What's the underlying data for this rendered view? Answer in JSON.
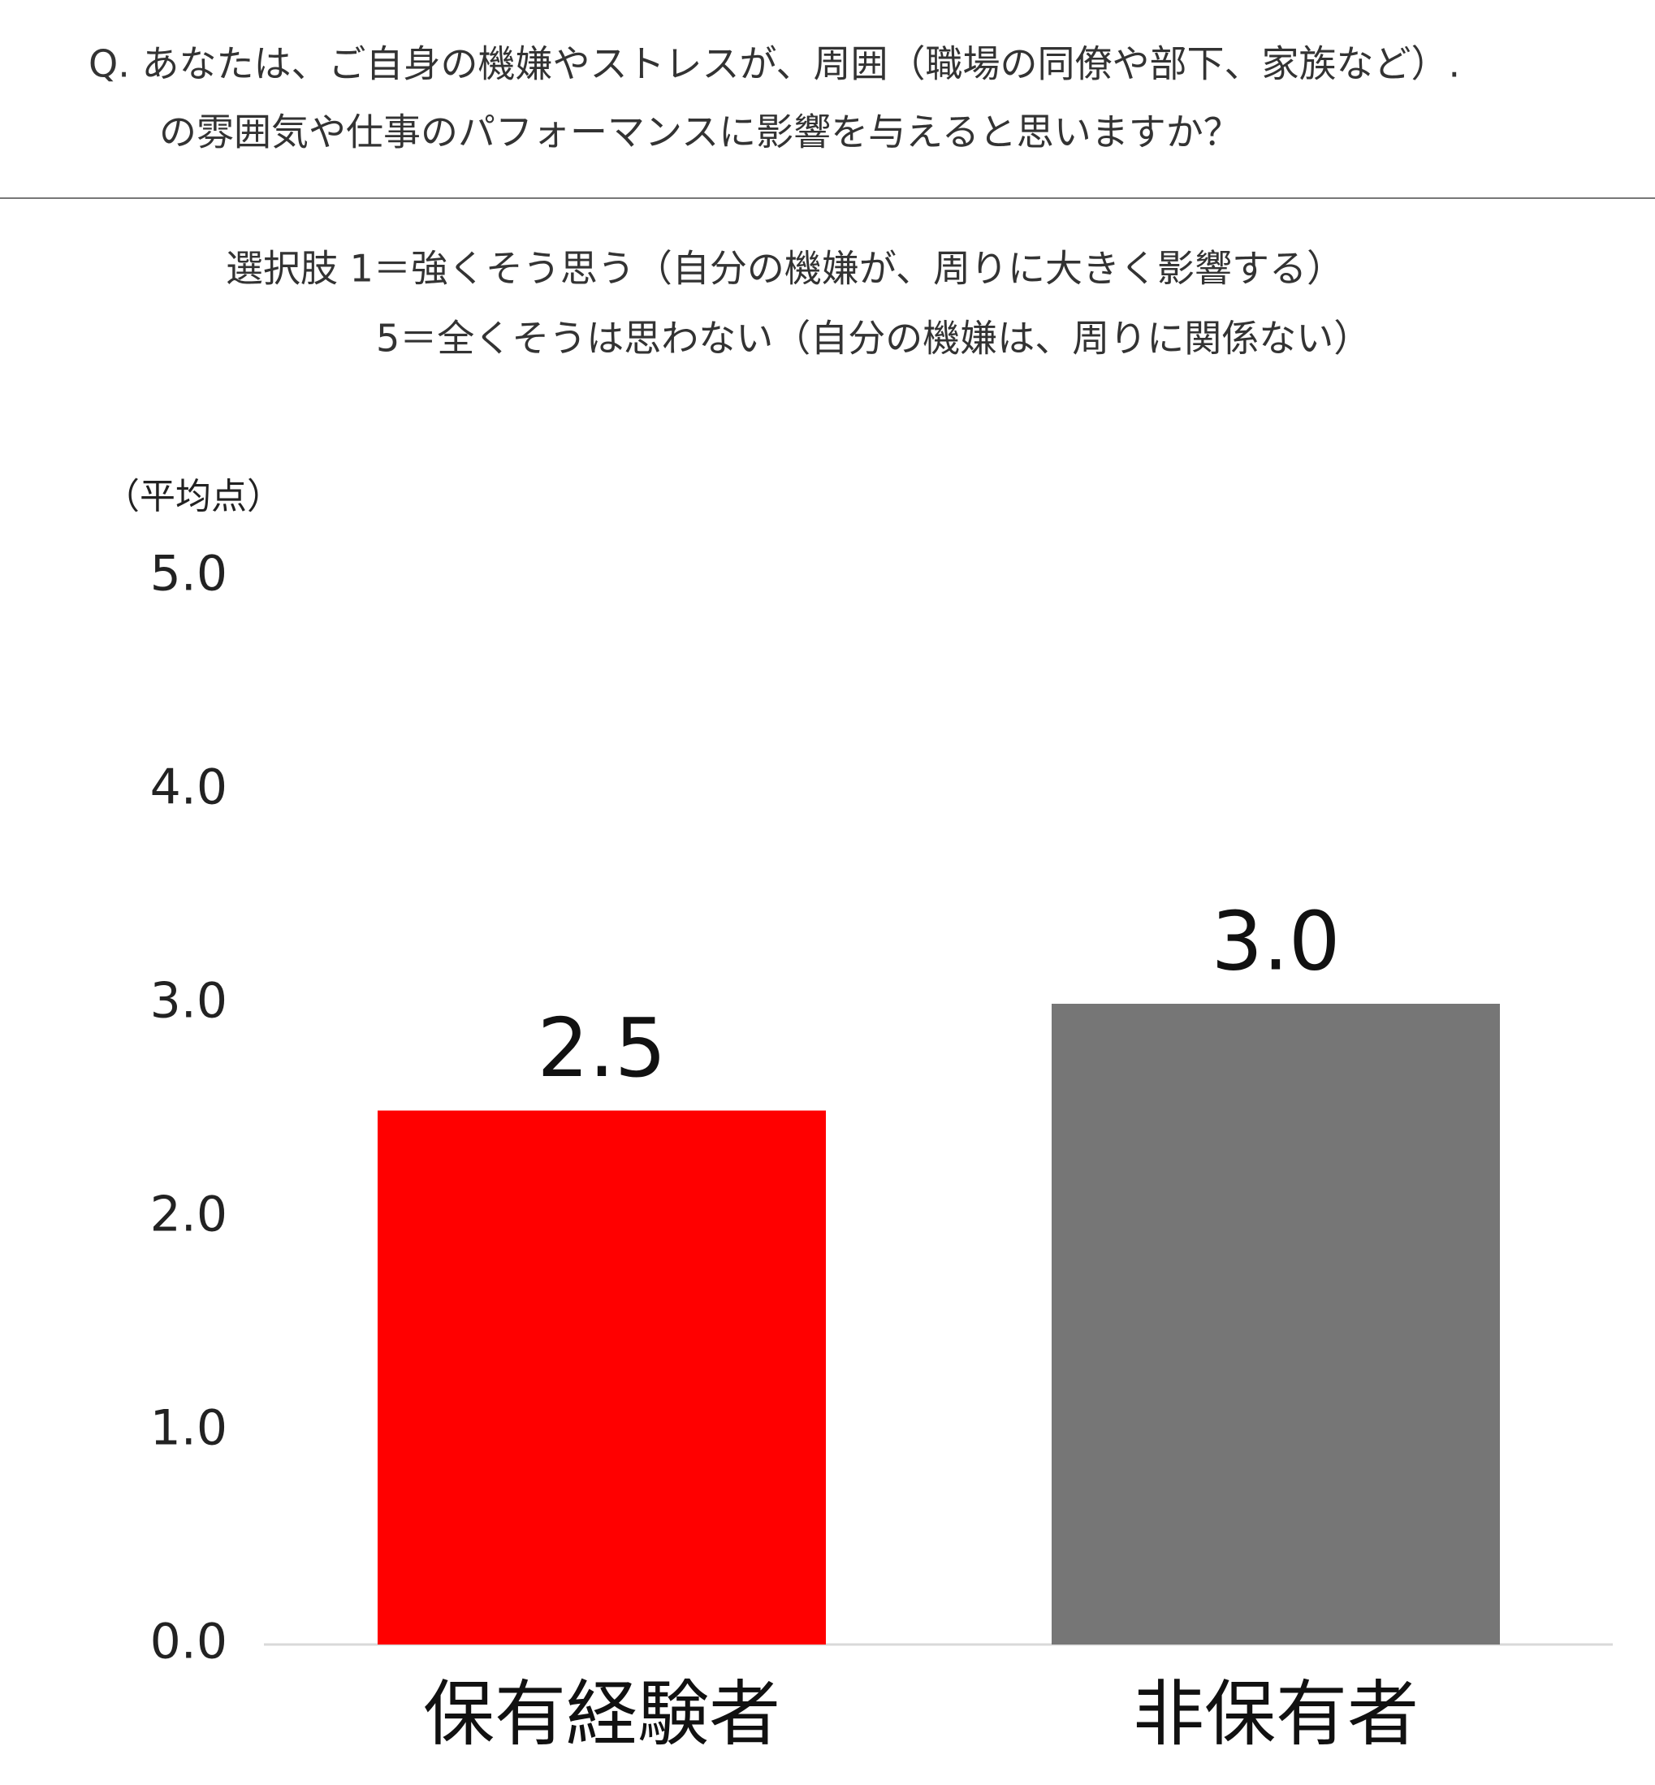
{
  "chart_data": {
    "type": "bar",
    "title": [
      "Q. あなたは、ご自身の機嫌やストレスが、周囲（職場の同僚や部下、家族など）.",
      "の雰囲気や仕事のパフォーマンスに影響を与えると思いますか？"
    ],
    "subtitle": [
      "選択肢 1＝強くそう思う（自分の機嫌が、周りに大きく影響する）",
      "5＝全くそうは思わない（自分の機嫌は、周りに関係ない）"
    ],
    "y_label": "（平均点）",
    "categories": [
      "保有経験者",
      "非保有者"
    ],
    "values": [
      2.5,
      3
    ],
    "value_labels": [
      "2.5",
      "3.0"
    ],
    "colors": [
      "#ff0000",
      "#767676"
    ],
    "ylim": [
      0,
      5
    ],
    "yticks": [
      {
        "value": 0,
        "label": "0.0"
      },
      {
        "value": 1,
        "label": "1.0"
      },
      {
        "value": 2,
        "label": "2.0"
      },
      {
        "value": 3,
        "label": "3.0"
      },
      {
        "value": 4,
        "label": "4.0"
      },
      {
        "value": 5,
        "label": "5.0"
      }
    ],
    "grid": false
  }
}
